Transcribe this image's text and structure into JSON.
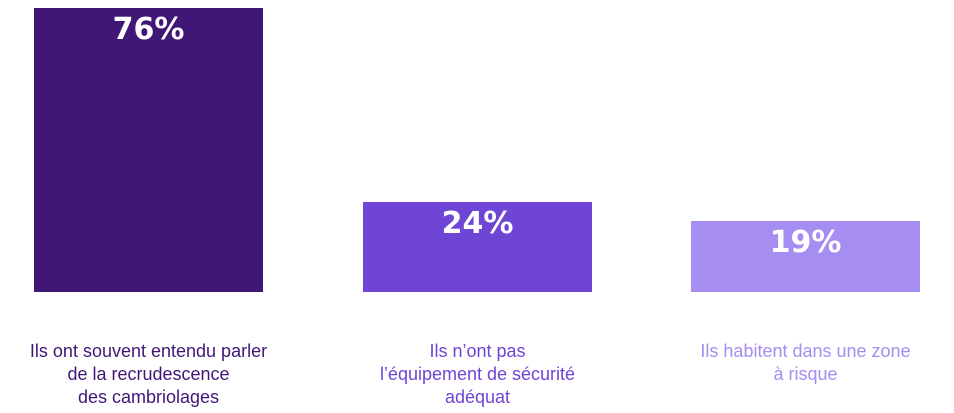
{
  "chart_data": {
    "type": "bar",
    "categories": [
      "Ils ont souvent entendu parler\nde la recrudescence\ndes cambriolages",
      "Ils n’ont pas\nl’équipement de sécurité\nadéquat",
      "Ils habitent dans une zone\nà risque"
    ],
    "values": [
      76,
      24,
      19
    ],
    "value_labels": [
      "76%",
      "24%",
      "19%"
    ],
    "colors": [
      "#401776",
      "#6e45d5",
      "#a68df2"
    ],
    "label_colors": [
      "#401776",
      "#6e45d5",
      "#a68df2"
    ],
    "ylim": [
      0,
      76
    ],
    "grid": false,
    "legend": "none"
  }
}
